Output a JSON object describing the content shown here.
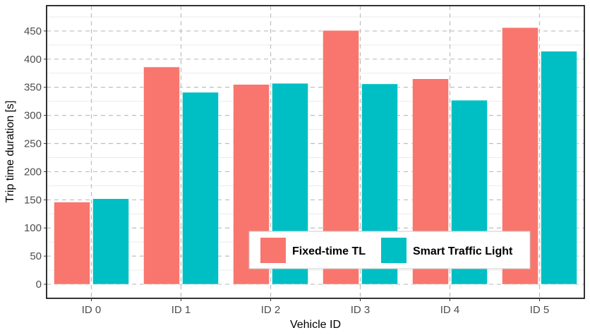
{
  "chart_data": {
    "type": "bar",
    "categories": [
      "ID 0",
      "ID 1",
      "ID 2",
      "ID 3",
      "ID 4",
      "ID 5"
    ],
    "series": [
      {
        "name": "Fixed-time TL",
        "color": "#f8766d",
        "values": [
          146,
          386,
          355,
          451,
          365,
          456
        ]
      },
      {
        "name": "Smart Traffic Light",
        "color": "#00bfc4",
        "values": [
          152,
          341,
          357,
          356,
          327,
          414
        ]
      }
    ],
    "title": "",
    "xlabel": "Vehicle ID",
    "ylabel": "Trip time duration [s]",
    "ylim": [
      -25,
      495
    ],
    "yticks": [
      0,
      50,
      100,
      150,
      200,
      250,
      300,
      350,
      400,
      450
    ],
    "grid": true,
    "legend_position": "bottom-right"
  }
}
